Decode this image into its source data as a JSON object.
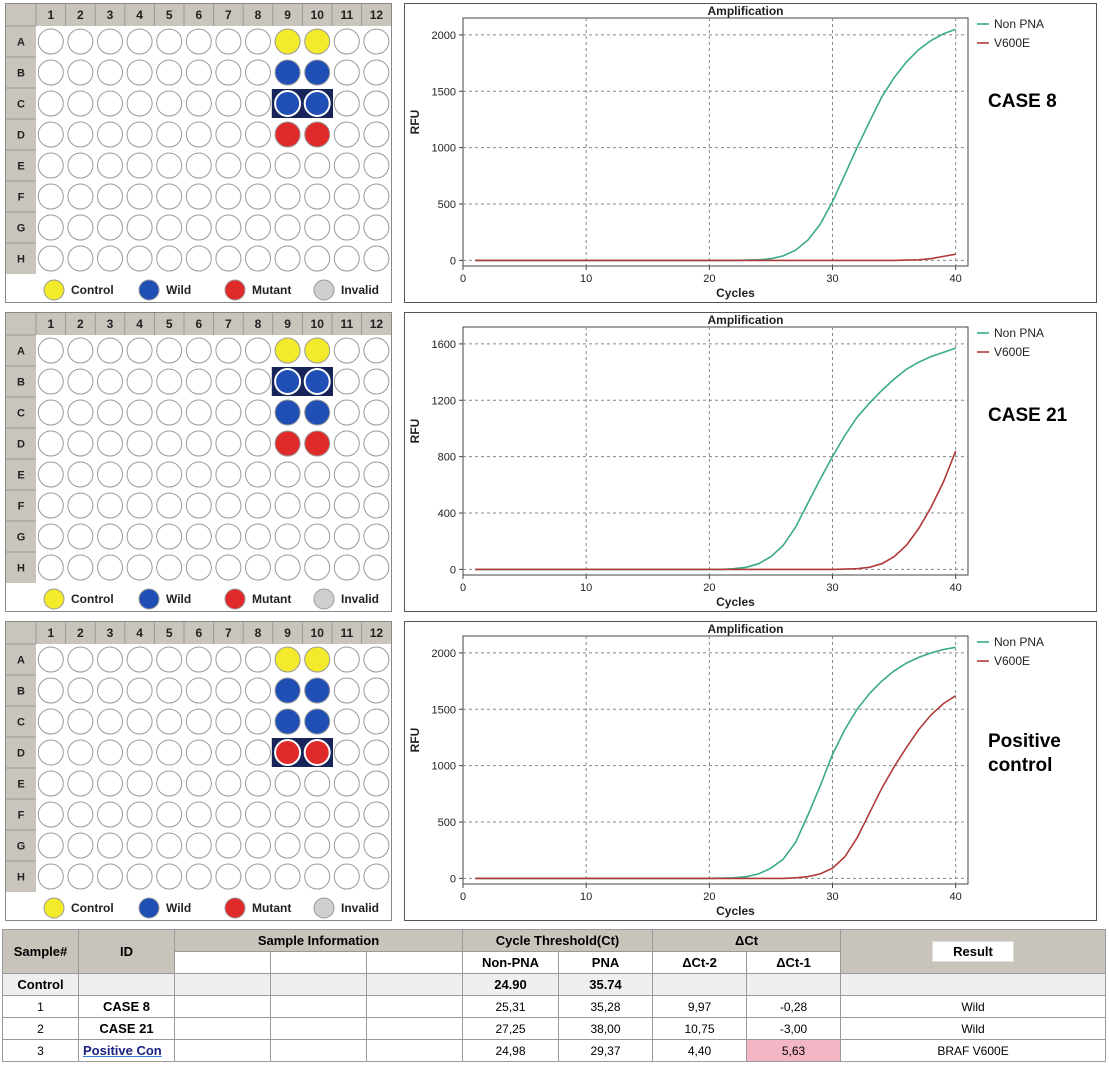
{
  "plate": {
    "columns": [
      "1",
      "2",
      "3",
      "4",
      "5",
      "6",
      "7",
      "8",
      "9",
      "10",
      "11",
      "12"
    ],
    "rows": [
      "A",
      "B",
      "C",
      "D",
      "E",
      "F",
      "G",
      "H"
    ],
    "legend": [
      {
        "label": "Control",
        "color": "#f2ea2a"
      },
      {
        "label": "Wild",
        "color": "#1f4fb5"
      },
      {
        "label": "Mutant",
        "color": "#e02a2a"
      },
      {
        "label": "Invalid",
        "color": "#cfcfcf"
      }
    ]
  },
  "panels": [
    {
      "case_label": "CASE 8",
      "selected_row": "C",
      "wells": {
        "A9": "control",
        "A10": "control",
        "B9": "wild",
        "B10": "wild",
        "C9": "wild",
        "C10": "wild",
        "D9": "mutant",
        "D10": "mutant"
      },
      "chart_data": {
        "type": "line",
        "title": "Amplification",
        "xlabel": "Cycles",
        "ylabel": "RFU",
        "xlim": [
          0,
          41
        ],
        "ylim": [
          -50,
          2150
        ],
        "xticks": [
          0,
          10,
          20,
          30,
          40
        ],
        "yticks": [
          0,
          500,
          1000,
          1500,
          2000
        ],
        "grid": true,
        "legend_position": "right",
        "series": [
          {
            "name": "Non PNA",
            "color": "#3aaa88",
            "x": [
              1,
              22,
              24,
              25,
              26,
              27,
              28,
              29,
              30,
              31,
              32,
              33,
              34,
              35,
              36,
              37,
              38,
              39,
              40
            ],
            "y": [
              0,
              0,
              5,
              15,
              40,
              90,
              180,
              320,
              520,
              760,
              1000,
              1230,
              1450,
              1620,
              1760,
              1870,
              1950,
              2010,
              2050
            ]
          },
          {
            "name": "V600E",
            "color": "#b03a3a",
            "x": [
              1,
              35,
              36,
              37,
              38,
              39,
              40
            ],
            "y": [
              0,
              0,
              2,
              5,
              15,
              35,
              55
            ]
          }
        ]
      }
    },
    {
      "case_label": "CASE 21",
      "selected_row": "B",
      "wells": {
        "A9": "control",
        "A10": "control",
        "B9": "wild",
        "B10": "wild",
        "C9": "wild",
        "C10": "wild",
        "D9": "mutant",
        "D10": "mutant"
      },
      "chart_data": {
        "type": "line",
        "title": "Amplification",
        "xlabel": "Cycles",
        "ylabel": "RFU",
        "xlim": [
          0,
          41
        ],
        "ylim": [
          -40,
          1720
        ],
        "xticks": [
          0,
          10,
          20,
          30,
          40
        ],
        "yticks": [
          0,
          400,
          800,
          1200,
          1600
        ],
        "grid": true,
        "legend_position": "right",
        "series": [
          {
            "name": "Non PNA",
            "color": "#3aaa88",
            "x": [
              1,
              21,
              22,
              23,
              24,
              25,
              26,
              27,
              28,
              29,
              30,
              31,
              32,
              33,
              34,
              35,
              36,
              37,
              38,
              39,
              40
            ],
            "y": [
              0,
              0,
              5,
              15,
              40,
              90,
              170,
              300,
              470,
              640,
              800,
              950,
              1080,
              1180,
              1270,
              1350,
              1420,
              1470,
              1510,
              1540,
              1570
            ]
          },
          {
            "name": "V600E",
            "color": "#b03a3a",
            "x": [
              1,
              30,
              31,
              32,
              33,
              34,
              35,
              36,
              37,
              38,
              39,
              40
            ],
            "y": [
              0,
              0,
              2,
              5,
              15,
              40,
              90,
              170,
              290,
              440,
              620,
              840
            ]
          }
        ]
      }
    },
    {
      "case_label": "Positive control",
      "selected_row": "D",
      "wells": {
        "A9": "control",
        "A10": "control",
        "B9": "wild",
        "B10": "wild",
        "C9": "wild",
        "C10": "wild",
        "D9": "mutant",
        "D10": "mutant"
      },
      "chart_data": {
        "type": "line",
        "title": "Amplification",
        "xlabel": "Cycles",
        "ylabel": "RFU",
        "xlim": [
          0,
          41
        ],
        "ylim": [
          -50,
          2150
        ],
        "xticks": [
          0,
          10,
          20,
          30,
          40
        ],
        "yticks": [
          0,
          500,
          1000,
          1500,
          2000
        ],
        "grid": true,
        "legend_position": "right",
        "series": [
          {
            "name": "Non PNA",
            "color": "#3aaa88",
            "x": [
              1,
              20,
              22,
              23,
              24,
              25,
              26,
              27,
              28,
              29,
              30,
              31,
              32,
              33,
              34,
              35,
              36,
              37,
              38,
              39,
              40
            ],
            "y": [
              0,
              0,
              5,
              15,
              40,
              90,
              170,
              320,
              560,
              820,
              1100,
              1320,
              1500,
              1640,
              1750,
              1840,
              1910,
              1960,
              2000,
              2030,
              2050
            ]
          },
          {
            "name": "V600E",
            "color": "#b03a3a",
            "x": [
              1,
              26,
              27,
              28,
              29,
              30,
              31,
              32,
              33,
              34,
              35,
              36,
              37,
              38,
              39,
              40
            ],
            "y": [
              0,
              0,
              5,
              15,
              40,
              90,
              190,
              360,
              580,
              800,
              990,
              1160,
              1320,
              1450,
              1550,
              1620
            ]
          }
        ]
      }
    }
  ],
  "results_table": {
    "headers": {
      "sample": "Sample#",
      "id": "ID",
      "sample_info": "Sample Information",
      "ct": "Cycle Threshold(Ct)",
      "dct": "ΔCt",
      "result": "Result"
    },
    "subheaders": {
      "non_pna": "Non-PNA",
      "pna": "PNA",
      "dct2": "ΔCt-2",
      "dct1": "ΔCt-1"
    },
    "control": {
      "label": "Control",
      "non_pna": "24.90",
      "pna": "35.74"
    },
    "rows": [
      {
        "num": "1",
        "id": "CASE 8",
        "non_pna": "25,31",
        "pna": "35,28",
        "dct2": "9,97",
        "dct1": "-0,28",
        "result": "Wild"
      },
      {
        "num": "2",
        "id": "CASE 21",
        "non_pna": "27,25",
        "pna": "38,00",
        "dct2": "10,75",
        "dct1": "-3,00",
        "result": "Wild"
      },
      {
        "num": "3",
        "id": "Positive Con",
        "non_pna": "24,98",
        "pna": "29,37",
        "dct2": "4,40",
        "dct1": "5,63",
        "result": "BRAF V600E"
      }
    ]
  }
}
